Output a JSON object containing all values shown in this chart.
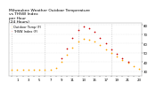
{
  "title": "Milwaukee Weather Outdoor Temperature\nvs THSW Index\nper Hour\n(24 Hours)",
  "hours": [
    0,
    1,
    2,
    3,
    4,
    5,
    6,
    7,
    8,
    9,
    10,
    11,
    12,
    13,
    14,
    15,
    16,
    17,
    18,
    19,
    20,
    21,
    22,
    23
  ],
  "temp": [
    32,
    32,
    32,
    32,
    32,
    32,
    32,
    32,
    34,
    40,
    48,
    56,
    62,
    65,
    64,
    62,
    58,
    54,
    50,
    46,
    42,
    39,
    36,
    33
  ],
  "thsw": [
    null,
    null,
    null,
    null,
    null,
    null,
    null,
    null,
    null,
    44,
    55,
    66,
    75,
    78,
    76,
    73,
    66,
    60,
    54,
    49,
    44,
    40,
    null,
    null
  ],
  "temp_color": "#FFA500",
  "thsw_color": "#CC0000",
  "bg_color": "#ffffff",
  "grid_color": "#bbbbbb",
  "ylim_min": 25,
  "ylim_max": 82,
  "ytick_values": [
    30,
    40,
    50,
    60,
    70,
    80
  ],
  "ytick_labels": [
    "30",
    "40",
    "50",
    "60",
    "70",
    "80"
  ],
  "vgrid_positions": [
    0,
    6,
    12,
    18,
    24
  ],
  "marker_size": 1.5,
  "title_fontsize": 3.2,
  "tick_fontsize": 2.8,
  "legend_fontsize": 2.5,
  "legend_labels": [
    "Outdoor Temp (F)",
    "THSW Index (F)"
  ],
  "legend_colors": [
    "#FFA500",
    "#CC0000"
  ]
}
